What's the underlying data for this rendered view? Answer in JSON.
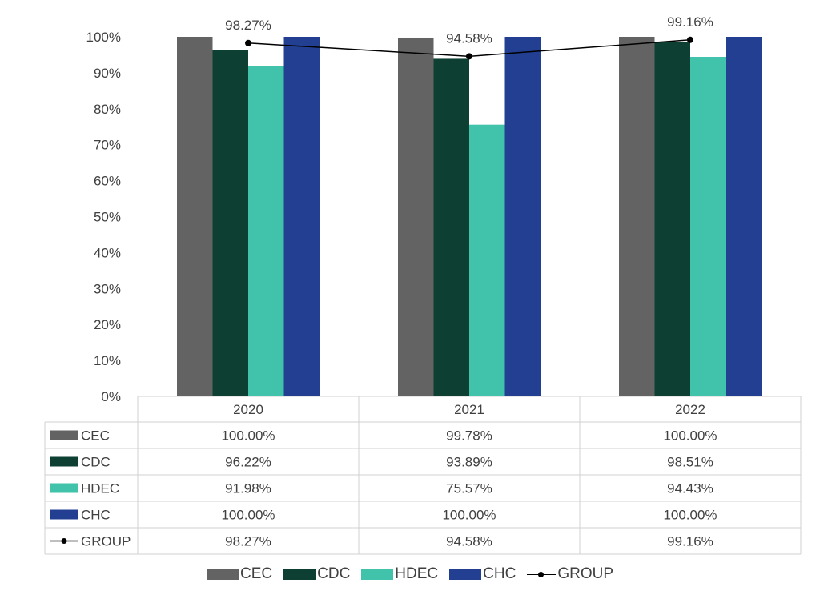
{
  "chart_data": {
    "type": "bar",
    "categories": [
      "2020",
      "2021",
      "2022"
    ],
    "ylim": [
      0,
      100
    ],
    "yticks": [
      "0%",
      "10%",
      "20%",
      "30%",
      "40%",
      "50%",
      "60%",
      "70%",
      "80%",
      "90%",
      "100%"
    ],
    "grid": false,
    "legend_placement": "bottom",
    "series": [
      {
        "name": "CEC",
        "type": "bar",
        "color": "#636363",
        "values": [
          100.0,
          99.78,
          100.0
        ],
        "labels": [
          "100.00%",
          "99.78%",
          "100.00%"
        ]
      },
      {
        "name": "CDC",
        "type": "bar",
        "color": "#0d3f33",
        "values": [
          96.22,
          93.89,
          98.51
        ],
        "labels": [
          "96.22%",
          "93.89%",
          "98.51%"
        ]
      },
      {
        "name": "HDEC",
        "type": "bar",
        "color": "#40c2ab",
        "values": [
          91.98,
          75.57,
          94.43
        ],
        "labels": [
          "91.98%",
          "75.57%",
          "94.43%"
        ]
      },
      {
        "name": "CHC",
        "type": "bar",
        "color": "#223f92",
        "values": [
          100.0,
          100.0,
          100.0
        ],
        "labels": [
          "100.00%",
          "100.00%",
          "100.00%"
        ]
      },
      {
        "name": "GROUP",
        "type": "line",
        "color": "#000000",
        "values": [
          98.27,
          94.58,
          99.16
        ],
        "labels": [
          "98.27%",
          "94.58%",
          "99.16%"
        ]
      }
    ]
  }
}
